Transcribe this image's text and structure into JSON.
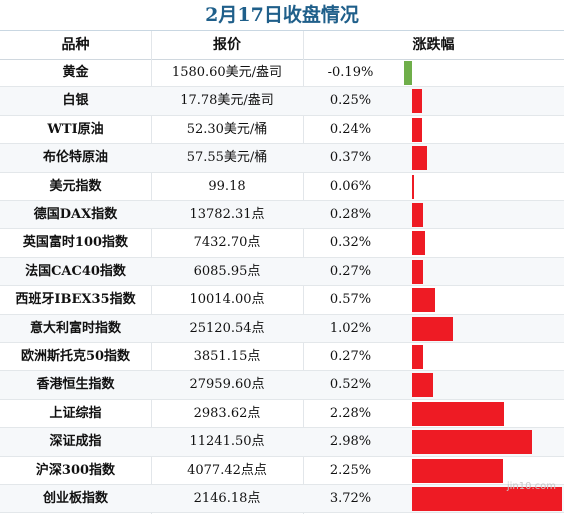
{
  "title": "2月17日收盘情况",
  "headers": {
    "name": "品种",
    "price": "报价",
    "change": "涨跌幅"
  },
  "watermark": "jin10.com",
  "colors": {
    "up": "#ee1b24",
    "down": "#6fae4a",
    "title": "#1f5f8a"
  },
  "chart_data": {
    "type": "bar",
    "orientation": "horizontal",
    "title": "2月17日收盘情况",
    "xlabel": "",
    "ylabel": "",
    "categories": [
      "黄金",
      "白银",
      "WTI原油",
      "布伦特原油",
      "美元指数",
      "德国DAX指数",
      "英国富时100指数",
      "法国CAC40指数",
      "西班牙IBEX35指数",
      "意大利富时指数",
      "欧洲斯托克50指数",
      "香港恒生指数",
      "上证综指",
      "深证成指",
      "沪深300指数",
      "创业板指数"
    ],
    "prices": [
      "1580.60美元/盎司",
      "17.78美元/盎司",
      "52.30美元/桶",
      "57.55美元/桶",
      "99.18",
      "13782.31点",
      "7432.70点",
      "6085.95点",
      "10014.00点",
      "25120.54点",
      "3851.15点",
      "27959.60点",
      "2983.62点",
      "11241.50点",
      "4077.42点点",
      "2146.18点"
    ],
    "change_labels": [
      "-0.19%",
      "0.25%",
      "0.24%",
      "0.37%",
      "0.06%",
      "0.28%",
      "0.32%",
      "0.27%",
      "0.57%",
      "1.02%",
      "0.27%",
      "0.52%",
      "2.28%",
      "2.98%",
      "2.25%",
      "3.72%"
    ],
    "values": [
      -0.19,
      0.25,
      0.24,
      0.37,
      0.06,
      0.28,
      0.32,
      0.27,
      0.57,
      1.02,
      0.27,
      0.52,
      2.28,
      2.98,
      2.25,
      3.72
    ]
  }
}
